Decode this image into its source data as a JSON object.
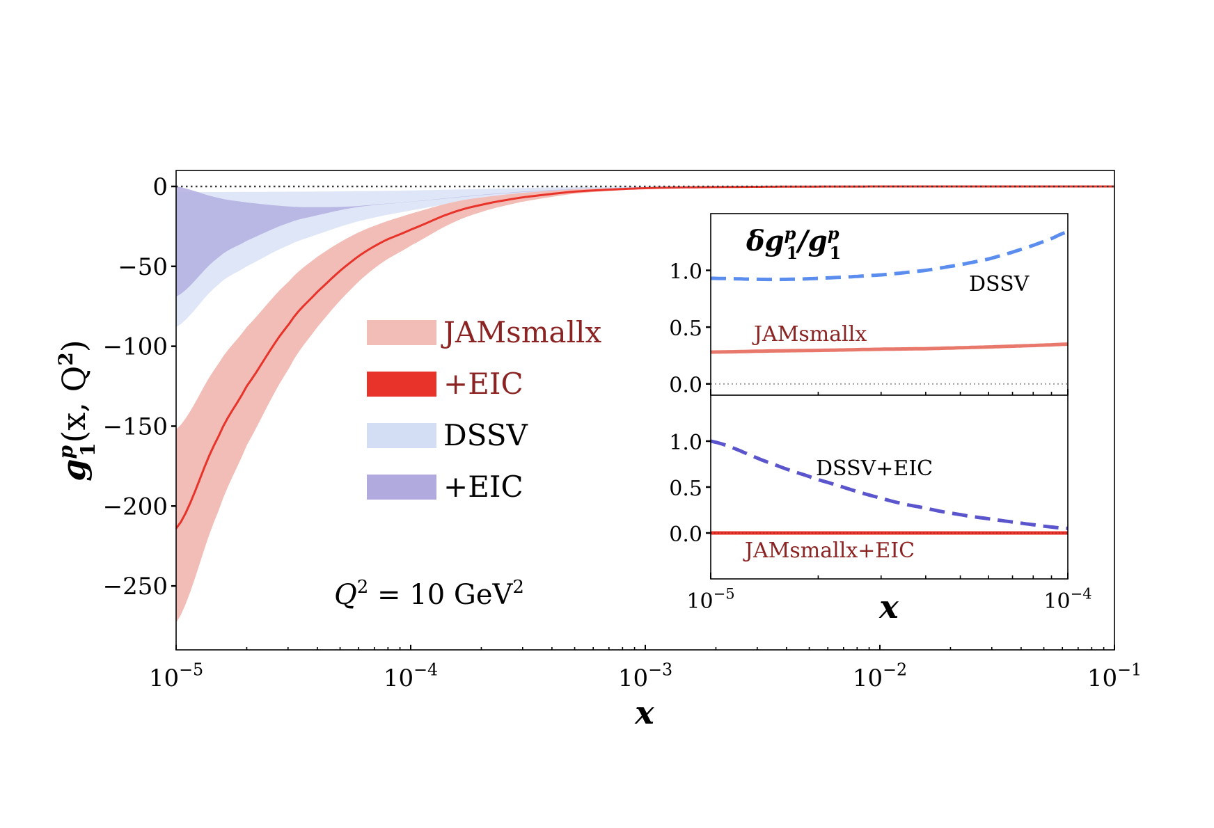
{
  "chart_data": [
    {
      "id": "main",
      "type": "area",
      "title": "",
      "xlabel": "x",
      "ylabel": "g1^p(x, Q^2)",
      "xscale": "log",
      "xlim": [
        1e-05,
        0.1
      ],
      "ylim": [
        -290,
        10
      ],
      "grid": false,
      "x_tick_labels": [
        {
          "value": 1e-05,
          "base": "10",
          "exp": "−5"
        },
        {
          "value": 0.0001,
          "base": "10",
          "exp": "−4"
        },
        {
          "value": 0.001,
          "base": "10",
          "exp": "−3"
        },
        {
          "value": 0.01,
          "base": "10",
          "exp": "−2"
        },
        {
          "value": 0.1,
          "base": "10",
          "exp": "−1"
        }
      ],
      "y_ticks": [
        0,
        -50,
        -100,
        -150,
        -200,
        -250
      ],
      "y_tick_labels": [
        "0",
        "−50",
        "−100",
        "−150",
        "−200",
        "−250"
      ],
      "reference_line": {
        "y": 0,
        "style": "dotted",
        "color": "#333333"
      },
      "x": [
        1e-05,
        1.5e-05,
        2e-05,
        3e-05,
        4e-05,
        5.6e-05,
        7.5e-05,
        0.0001,
        0.00015,
        0.00021,
        0.0003,
        0.0005,
        0.001,
        0.002,
        0.005,
        0.01,
        0.03,
        0.1
      ],
      "series": [
        {
          "name": "JAMsmallx",
          "kind": "band",
          "color": "#f2bdb6",
          "upper": [
            -152,
            -112,
            -88,
            -60,
            -44,
            -31,
            -23,
            -17,
            -10,
            -6.5,
            -4,
            -1.8,
            -0.6,
            -0.2,
            -0.05,
            -0.02,
            0,
            0
          ],
          "lower": [
            -273,
            -205,
            -162,
            -115,
            -88,
            -64,
            -48,
            -37,
            -23,
            -15,
            -9.5,
            -4.5,
            -1.6,
            -0.6,
            -0.15,
            -0.05,
            -0.01,
            0
          ]
        },
        {
          "name": "+EIC",
          "kind": "band",
          "color": "#e8332a",
          "center": [
            -214,
            -158,
            -125,
            -87,
            -66,
            -47,
            -35,
            -27,
            -16.5,
            -10.8,
            -6.8,
            -3.2,
            -1.1,
            -0.4,
            -0.1,
            -0.03,
            -0.01,
            0
          ]
        },
        {
          "name": "DSSV",
          "kind": "band",
          "color": "#dfe6f7",
          "upper": [
            -3.5,
            -3.5,
            -3.4,
            -3.3,
            -3.2,
            -3.0,
            -2.8,
            -2.5,
            -2.0,
            -1.5,
            -1.0,
            -0.5,
            -0.1,
            0,
            0,
            0,
            0,
            0
          ],
          "lower": [
            -88,
            -62,
            -50,
            -37,
            -30,
            -23,
            -18.5,
            -15,
            -10.5,
            -7.5,
            -5.2,
            -2.8,
            -1.0,
            -0.3,
            -0.05,
            -0.02,
            0,
            0
          ]
        },
        {
          "name": "+EIC",
          "kind": "band",
          "color": "#b3aee0",
          "upper": [
            0,
            -7,
            -10,
            -12.5,
            -13,
            -12.5,
            -11,
            -9.5,
            -7,
            -5,
            -3.2,
            -1.6,
            -0.5,
            -0.15,
            -0.03,
            -0.01,
            0,
            0
          ],
          "lower": [
            -69,
            -45,
            -34,
            -23,
            -18,
            -13.5,
            -11.2,
            -9.6,
            -7.2,
            -5.2,
            -3.5,
            -1.8,
            -0.6,
            -0.2,
            -0.04,
            -0.01,
            0,
            0
          ]
        }
      ],
      "legend": {
        "placement": "center-left",
        "entries": [
          {
            "label": "JAMsmallx",
            "color": "#f2bdb6",
            "text_color": "#8b2323"
          },
          {
            "label": "+EIC",
            "color": "#e8332a",
            "text_color": "#8b2323"
          },
          {
            "label": "DSSV",
            "color": "#d3ddf4",
            "text_color": "#000000"
          },
          {
            "label": "+EIC",
            "color": "#b1aade",
            "text_color": "#000000"
          }
        ]
      },
      "annotations": [
        {
          "text": "Q² = 10 GeV²",
          "position": "bottom-left"
        }
      ]
    },
    {
      "id": "inset-top",
      "type": "line",
      "title": "δg1^p/g1^p",
      "xscale": "log",
      "xlim": [
        1e-05,
        0.0001
      ],
      "ylim": [
        -0.1,
        1.5
      ],
      "y_ticks": [
        0.0,
        0.5,
        1.0
      ],
      "y_tick_labels": [
        "0.0",
        "0.5",
        "1.0"
      ],
      "reference_line": {
        "y": 0,
        "style": "dotted",
        "color": "#999999"
      },
      "x": [
        1e-05,
        1.5e-05,
        2e-05,
        3e-05,
        4e-05,
        5e-05,
        6e-05,
        7e-05,
        8e-05,
        9e-05,
        0.0001
      ],
      "series": [
        {
          "name": "DSSV",
          "style": "dashed",
          "color": "#5b8def",
          "values": [
            0.93,
            0.92,
            0.93,
            0.96,
            1.0,
            1.05,
            1.1,
            1.16,
            1.22,
            1.28,
            1.34
          ]
        },
        {
          "name": "JAMsmallx",
          "style": "solid",
          "color": "#e9786c",
          "values": [
            0.28,
            0.29,
            0.295,
            0.305,
            0.31,
            0.318,
            0.325,
            0.332,
            0.338,
            0.344,
            0.35
          ]
        }
      ],
      "annotations": [
        {
          "text": "DSSV",
          "color": "#222222"
        },
        {
          "text": "JAMsmallx",
          "color": "#8b2323"
        }
      ]
    },
    {
      "id": "inset-bottom",
      "type": "line",
      "xlabel": "x",
      "xscale": "log",
      "xlim": [
        1e-05,
        0.0001
      ],
      "ylim": [
        -0.5,
        1.5
      ],
      "y_ticks": [
        0.0,
        0.5,
        1.0
      ],
      "y_tick_labels": [
        "0.0",
        "0.5",
        "1.0"
      ],
      "x_tick_labels": [
        {
          "value": 1e-05,
          "base": "10",
          "exp": "−5"
        },
        {
          "value": 0.0001,
          "base": "10",
          "exp": "−4"
        }
      ],
      "x": [
        1e-05,
        1.5e-05,
        2e-05,
        3e-05,
        4e-05,
        5e-05,
        6e-05,
        7e-05,
        8e-05,
        9e-05,
        0.0001
      ],
      "series": [
        {
          "name": "DSSV+EIC",
          "style": "dashed",
          "color": "#5a55cc",
          "values": [
            1.0,
            0.75,
            0.58,
            0.38,
            0.27,
            0.2,
            0.155,
            0.12,
            0.09,
            0.065,
            0.05
          ]
        },
        {
          "name": "JAMsmallx+EIC",
          "style": "solid",
          "color": "#e8332a",
          "values": [
            0.0,
            0.0,
            0.0,
            0.0,
            0.0,
            0.0,
            0.0,
            0.0,
            0.0,
            0.0,
            0.0
          ]
        }
      ],
      "annotations": [
        {
          "text": "DSSV+EIC",
          "color": "#222222"
        },
        {
          "text": "JAMsmallx+EIC",
          "color": "#8b2323"
        }
      ]
    }
  ],
  "labels": {
    "ylabel_main": "g",
    "ylabel_sup": "p",
    "ylabel_sub": "1",
    "ylabel_args": "(x, Q",
    "ylabel_sq": "2",
    "ylabel_close": ")",
    "xlabel_main": "x",
    "q2_Q": "Q",
    "q2_exp": "2",
    "q2_eq": " = 10 GeV",
    "q2_unit_exp": "2",
    "inset_title_delta": "δg",
    "inset_title_sup": "p",
    "inset_title_sub": "1",
    "inset_title_slash": "/g",
    "inset_title_sup2": "p",
    "inset_title_sub2": "1",
    "inset_xlabel": "x",
    "inset_top_annot_dssv": "DSSV",
    "inset_top_annot_jam": "JAMsmallx",
    "inset_bottom_annot_dssv": "DSSV+EIC",
    "inset_bottom_annot_jam": "JAMsmallx+EIC"
  }
}
